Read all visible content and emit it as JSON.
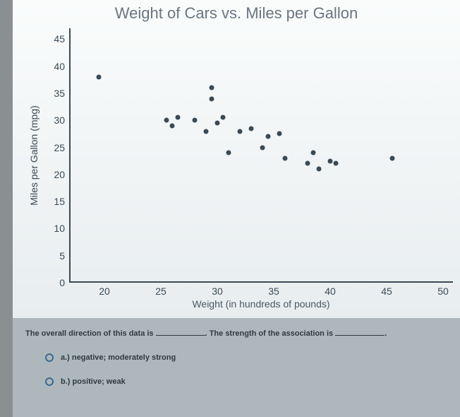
{
  "chart": {
    "type": "scatter",
    "title": "Weight of Cars vs. Miles per Gallon",
    "title_fontsize": 22,
    "title_color": "#6a7580",
    "x_axis": {
      "label": "Weight (in hundreds of pounds)",
      "min": 17,
      "max": 51,
      "ticks": [
        20,
        25,
        30,
        35,
        40,
        45,
        50
      ],
      "label_fontsize": 14
    },
    "y_axis": {
      "label": "Miles per Gallon (mpg)",
      "min": 0,
      "max": 47,
      "ticks": [
        0,
        5,
        10,
        15,
        20,
        25,
        30,
        35,
        40,
        45
      ],
      "label_fontsize": 14
    },
    "point_color": "#3a4a55",
    "point_radius": 3.5,
    "axis_color": "#3a4a55",
    "background_top": "#fafcfc",
    "background_bottom": "#e8edef",
    "points": [
      {
        "x": 19.5,
        "y": 38
      },
      {
        "x": 25.5,
        "y": 30
      },
      {
        "x": 26,
        "y": 29
      },
      {
        "x": 26.5,
        "y": 30.5
      },
      {
        "x": 28,
        "y": 30
      },
      {
        "x": 29,
        "y": 28
      },
      {
        "x": 29.5,
        "y": 36
      },
      {
        "x": 29.5,
        "y": 34
      },
      {
        "x": 30,
        "y": 29.5
      },
      {
        "x": 30.5,
        "y": 30.5
      },
      {
        "x": 31,
        "y": 24
      },
      {
        "x": 32,
        "y": 28
      },
      {
        "x": 33,
        "y": 28.5
      },
      {
        "x": 34,
        "y": 25
      },
      {
        "x": 34.5,
        "y": 27
      },
      {
        "x": 35.5,
        "y": 27.5
      },
      {
        "x": 36,
        "y": 23
      },
      {
        "x": 38,
        "y": 22
      },
      {
        "x": 38.5,
        "y": 24
      },
      {
        "x": 39,
        "y": 21
      },
      {
        "x": 40,
        "y": 22.5
      },
      {
        "x": 40.5,
        "y": 22
      },
      {
        "x": 45.5,
        "y": 23
      }
    ]
  },
  "question": {
    "prompt_part1": "The overall direction of this data is ",
    "prompt_part2": ". The strength of the association is ",
    "prompt_part3": ".",
    "options": [
      {
        "key": "a.)",
        "text": "negative; moderately strong"
      },
      {
        "key": "b.)",
        "text": "positive; weak"
      }
    ],
    "panel_bg": "#aeb8bc",
    "text_color": "#2e3a40",
    "radio_border": "#3a6a90"
  }
}
